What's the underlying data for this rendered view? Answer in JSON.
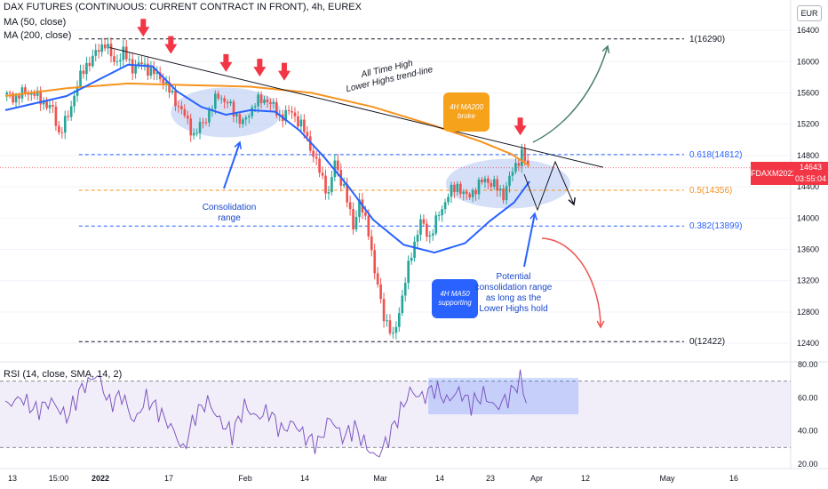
{
  "header": {
    "title": "DAX FUTURES (CONTINUOUS: CURRENT CONTRACT IN FRONT), 4h, EUREX",
    "ma50": "MA (50, close)",
    "ma200": "MA (200, close)",
    "rsi": "RSI (14, close, SMA, 14, 2)"
  },
  "currency": "EUR",
  "price_tag": {
    "symbol": "FDAXM2022",
    "value": "14643",
    "countdown": "03:55:04"
  },
  "colors": {
    "up": "#26a69a",
    "down": "#ef5350",
    "ma50": "#2962ff",
    "ma200": "#f7931e",
    "rsi": "#7e57c2",
    "arrow_red": "#f23645",
    "fib_blue": "#2962ff",
    "fib_orange": "#f7931e",
    "ellipse": "#b3c7f2",
    "up_arrow": "#4b7f6b"
  },
  "chart_data": {
    "type": "candlestick",
    "price_axis": {
      "ylim": [
        12220,
        16560
      ],
      "ticks": [
        12400,
        12800,
        13200,
        13600,
        14000,
        14400,
        14800,
        15200,
        15600,
        16000,
        16400
      ]
    },
    "x_axis_labels": [
      "13",
      "15:00",
      "2022",
      "17",
      "Feb",
      "14",
      "Mar",
      "14",
      "23",
      "Apr",
      "12",
      "May",
      "16"
    ],
    "fib_levels": [
      {
        "label": "1(16290)",
        "value": 16290
      },
      {
        "label": "0.618(14812)",
        "value": 14812
      },
      {
        "label": "0.5(14356)",
        "value": 14356
      },
      {
        "label": "0.382(13899)",
        "value": 13899
      },
      {
        "label": "0(12422)",
        "value": 12422
      }
    ],
    "last_price": 14643,
    "close_path": [
      [
        0,
        15580
      ],
      [
        4,
        15540
      ],
      [
        7,
        15620
      ],
      [
        10,
        15580
      ],
      [
        13,
        15480
      ],
      [
        16,
        15380
      ],
      [
        18,
        15080
      ],
      [
        21,
        15300
      ],
      [
        24,
        15720
      ],
      [
        27,
        15960
      ],
      [
        30,
        16100
      ],
      [
        33,
        16250
      ],
      [
        36,
        15980
      ],
      [
        39,
        16120
      ],
      [
        42,
        15920
      ],
      [
        45,
        15970
      ],
      [
        48,
        15880
      ],
      [
        52,
        15760
      ],
      [
        55,
        15560
      ],
      [
        58,
        15380
      ],
      [
        62,
        15060
      ],
      [
        66,
        15280
      ],
      [
        70,
        15580
      ],
      [
        74,
        15420
      ],
      [
        78,
        15200
      ],
      [
        82,
        15480
      ],
      [
        86,
        15520
      ],
      [
        90,
        15300
      ],
      [
        94,
        15360
      ],
      [
        98,
        15120
      ],
      [
        102,
        14700
      ],
      [
        106,
        14300
      ],
      [
        108,
        14720
      ],
      [
        111,
        14380
      ],
      [
        114,
        13900
      ],
      [
        116,
        14200
      ],
      [
        119,
        13850
      ],
      [
        121,
        13300
      ],
      [
        124,
        12760
      ],
      [
        127,
        12460
      ],
      [
        130,
        13000
      ],
      [
        133,
        13560
      ],
      [
        136,
        13950
      ],
      [
        139,
        13760
      ],
      [
        142,
        14050
      ],
      [
        145,
        14300
      ],
      [
        148,
        14420
      ],
      [
        151,
        14260
      ],
      [
        154,
        14380
      ],
      [
        157,
        14500
      ],
      [
        160,
        14420
      ],
      [
        163,
        14300
      ],
      [
        166,
        14600
      ],
      [
        169,
        14830
      ],
      [
        171,
        14643
      ]
    ],
    "ma50_path": [
      [
        0,
        15380
      ],
      [
        20,
        15560
      ],
      [
        30,
        15760
      ],
      [
        40,
        15960
      ],
      [
        48,
        15940
      ],
      [
        56,
        15620
      ],
      [
        64,
        15420
      ],
      [
        72,
        15320
      ],
      [
        80,
        15380
      ],
      [
        88,
        15360
      ],
      [
        96,
        15120
      ],
      [
        104,
        14780
      ],
      [
        112,
        14400
      ],
      [
        120,
        13980
      ],
      [
        130,
        13660
      ],
      [
        140,
        13560
      ],
      [
        150,
        13680
      ],
      [
        158,
        13960
      ],
      [
        166,
        14200
      ],
      [
        171,
        14470
      ]
    ],
    "ma200_path": [
      [
        0,
        15560
      ],
      [
        20,
        15660
      ],
      [
        40,
        15720
      ],
      [
        60,
        15700
      ],
      [
        80,
        15680
      ],
      [
        100,
        15600
      ],
      [
        120,
        15420
      ],
      [
        140,
        15180
      ],
      [
        155,
        14980
      ],
      [
        165,
        14820
      ],
      [
        171,
        14670
      ]
    ],
    "trendline": [
      [
        34,
        16180
      ],
      [
        195,
        14650
      ]
    ],
    "lower_high_markers_x": [
      45,
      54,
      72,
      83,
      91,
      168
    ],
    "rsi": {
      "ylim": [
        20,
        80
      ],
      "ticks": [
        20,
        40,
        60,
        80
      ],
      "band": [
        30,
        70
      ],
      "path": [
        [
          0,
          55
        ],
        [
          5,
          60
        ],
        [
          10,
          52
        ],
        [
          15,
          58
        ],
        [
          20,
          48
        ],
        [
          25,
          66
        ],
        [
          30,
          74
        ],
        [
          34,
          56
        ],
        [
          38,
          62
        ],
        [
          42,
          45
        ],
        [
          46,
          60
        ],
        [
          50,
          52
        ],
        [
          55,
          40
        ],
        [
          58,
          28
        ],
        [
          62,
          50
        ],
        [
          66,
          58
        ],
        [
          70,
          46
        ],
        [
          74,
          38
        ],
        [
          78,
          55
        ],
        [
          82,
          48
        ],
        [
          86,
          52
        ],
        [
          90,
          40
        ],
        [
          94,
          45
        ],
        [
          98,
          36
        ],
        [
          102,
          32
        ],
        [
          106,
          48
        ],
        [
          110,
          36
        ],
        [
          114,
          42
        ],
        [
          118,
          30
        ],
        [
          121,
          24
        ],
        [
          124,
          32
        ],
        [
          128,
          48
        ],
        [
          132,
          64
        ],
        [
          136,
          60
        ],
        [
          140,
          66
        ],
        [
          144,
          58
        ],
        [
          148,
          64
        ],
        [
          152,
          56
        ],
        [
          156,
          62
        ],
        [
          160,
          54
        ],
        [
          164,
          60
        ],
        [
          168,
          71
        ],
        [
          170,
          58
        ]
      ]
    }
  },
  "annotations": {
    "ath_trendline": "All Time High\nLower Highs trend-line",
    "ma200_broke": "4H MA200\nbroke",
    "consolidation": "Consolidation\nrange",
    "ma50_support": "4H MA50\nsupporting",
    "potential_range": "Potential\nconsolidation range\nas long as the\nLower Highs hold"
  }
}
